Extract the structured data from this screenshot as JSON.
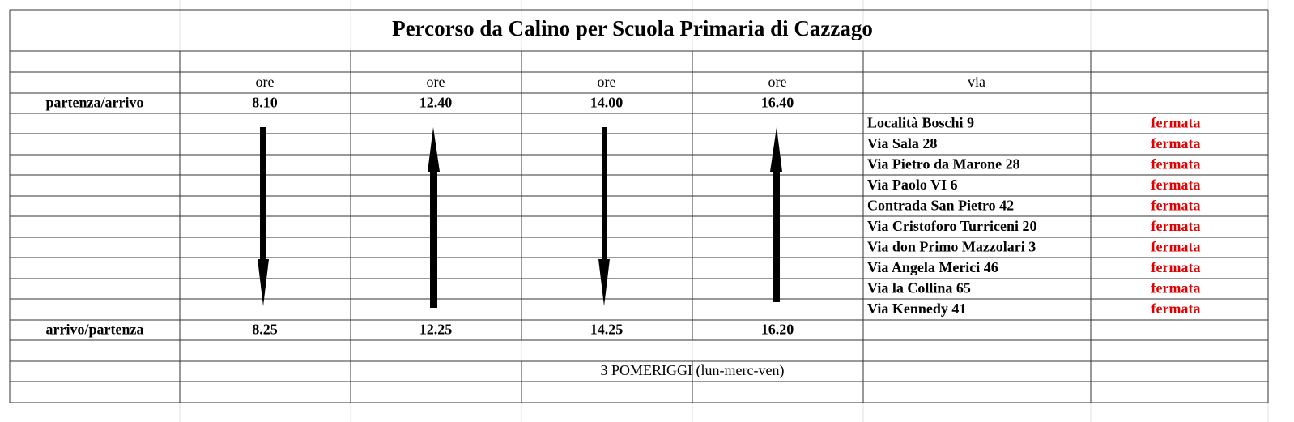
{
  "title": "Percorso da Calino per Scuola Primaria di Cazzago",
  "header": {
    "columns": [
      "ore",
      "ore",
      "ore",
      "ore",
      "via"
    ]
  },
  "departure": {
    "label": "partenza/arrivo",
    "times": [
      "8.10",
      "12.40",
      "14.00",
      "16.40"
    ]
  },
  "arrival": {
    "label": "arrivo/partenza",
    "times": [
      "8.25",
      "12.25",
      "14.25",
      "16.20"
    ]
  },
  "stops": [
    {
      "name": "Località Boschi 9",
      "status": "fermata"
    },
    {
      "name": "Via Sala 28",
      "status": "fermata"
    },
    {
      "name": "Via Pietro da Marone 28",
      "status": "fermata"
    },
    {
      "name": "Via Paolo VI 6",
      "status": "fermata"
    },
    {
      "name": "Contrada San Pietro 42",
      "status": "fermata"
    },
    {
      "name": "Via Cristoforo Turriceni 20",
      "status": "fermata"
    },
    {
      "name": "Via don Primo Mazzolari 3",
      "status": "fermata"
    },
    {
      "name": "Via Angela Merici 46",
      "status": "fermata"
    },
    {
      "name": "Via la Collina 65",
      "status": "fermata"
    },
    {
      "name": "Via Kennedy 41",
      "status": "fermata"
    }
  ],
  "footer": "3 POMERIGGI (lun-merc-ven)"
}
